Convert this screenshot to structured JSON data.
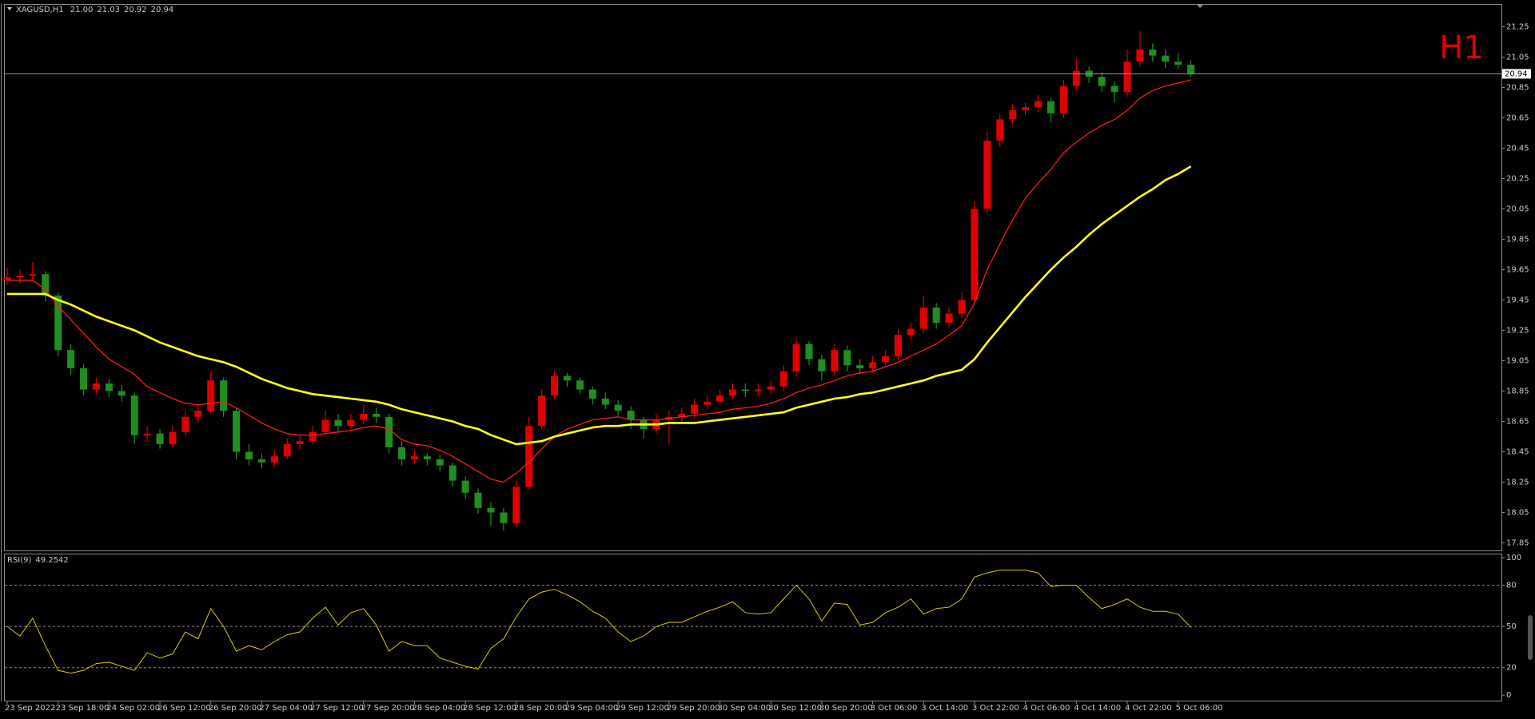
{
  "chart_data": {
    "type": "candlestick",
    "symbol": "XAGUSD,H1",
    "last_bar_labels": [
      "21.00",
      "21.03",
      "20.92",
      "20.94"
    ],
    "timeframe_label": "H1",
    "up_color": "#e00000",
    "down_color": "#1f8f1f",
    "current_price_line": true,
    "ylim": [
      17.8,
      21.4
    ],
    "yticks": [
      21.25,
      21.05,
      20.85,
      20.65,
      20.45,
      20.25,
      20.05,
      19.85,
      19.65,
      19.45,
      19.25,
      19.05,
      18.85,
      18.65,
      18.45,
      18.25,
      18.05,
      17.85
    ],
    "categories": [
      "23 Sep 2022",
      null,
      null,
      null,
      "23 Sep 18:00",
      null,
      null,
      null,
      "24 Sep 02:00",
      null,
      null,
      null,
      "26 Sep 12:00",
      null,
      null,
      null,
      "26 Sep 20:00",
      null,
      null,
      null,
      "27 Sep 04:00",
      null,
      null,
      null,
      "27 Sep 12:00",
      null,
      null,
      null,
      "27 Sep 20:00",
      null,
      null,
      null,
      "28 Sep 04:00",
      null,
      null,
      null,
      "28 Sep 12:00",
      null,
      null,
      null,
      "28 Sep 20:00",
      null,
      null,
      null,
      "29 Sep 04:00",
      null,
      null,
      null,
      "29 Sep 12:00",
      null,
      null,
      null,
      "29 Sep 20:00",
      null,
      null,
      null,
      "30 Sep 04:00",
      null,
      null,
      null,
      "30 Sep 12:00",
      null,
      null,
      null,
      "30 Sep 20:00",
      null,
      null,
      null,
      "3 Oct 06:00",
      null,
      null,
      null,
      "3 Oct 14:00",
      null,
      null,
      null,
      "3 Oct 22:00",
      null,
      null,
      null,
      "4 Oct 06:00",
      null,
      null,
      null,
      "4 Oct 14:00",
      null,
      null,
      null,
      "4 Oct 22:00",
      null,
      null,
      null,
      "5 Oct 06:00",
      null
    ],
    "candles": [
      [
        19.58,
        19.66,
        19.55,
        19.6
      ],
      [
        19.6,
        19.65,
        19.56,
        19.61
      ],
      [
        19.61,
        19.7,
        19.58,
        19.62
      ],
      [
        19.62,
        19.64,
        19.44,
        19.48
      ],
      [
        19.48,
        19.5,
        19.08,
        19.12
      ],
      [
        19.12,
        19.16,
        18.96,
        19.0
      ],
      [
        19.0,
        19.03,
        18.82,
        18.86
      ],
      [
        18.86,
        18.94,
        18.83,
        18.9
      ],
      [
        18.9,
        18.93,
        18.81,
        18.85
      ],
      [
        18.85,
        18.89,
        18.78,
        18.82
      ],
      [
        18.82,
        18.84,
        18.5,
        18.56
      ],
      [
        18.56,
        18.62,
        18.52,
        18.57
      ],
      [
        18.57,
        18.6,
        18.47,
        18.5
      ],
      [
        18.5,
        18.62,
        18.48,
        18.58
      ],
      [
        18.58,
        18.72,
        18.55,
        18.68
      ],
      [
        18.68,
        18.76,
        18.64,
        18.72
      ],
      [
        18.72,
        18.98,
        18.7,
        18.92
      ],
      [
        18.92,
        18.94,
        18.68,
        18.72
      ],
      [
        18.72,
        18.74,
        18.4,
        18.45
      ],
      [
        18.45,
        18.5,
        18.36,
        18.4
      ],
      [
        18.4,
        18.44,
        18.34,
        18.38
      ],
      [
        18.38,
        18.46,
        18.35,
        18.42
      ],
      [
        18.42,
        18.54,
        18.4,
        18.5
      ],
      [
        18.5,
        18.56,
        18.47,
        18.52
      ],
      [
        18.52,
        18.62,
        18.5,
        18.58
      ],
      [
        18.58,
        18.72,
        18.56,
        18.66
      ],
      [
        18.66,
        18.7,
        18.58,
        18.62
      ],
      [
        18.62,
        18.7,
        18.6,
        18.66
      ],
      [
        18.66,
        18.76,
        18.63,
        18.7
      ],
      [
        18.7,
        18.74,
        18.64,
        18.68
      ],
      [
        18.68,
        18.7,
        18.44,
        18.48
      ],
      [
        18.48,
        18.52,
        18.36,
        18.4
      ],
      [
        18.4,
        18.46,
        18.37,
        18.42
      ],
      [
        18.42,
        18.44,
        18.36,
        18.4
      ],
      [
        18.4,
        18.43,
        18.32,
        18.36
      ],
      [
        18.36,
        18.38,
        18.22,
        18.26
      ],
      [
        18.26,
        18.29,
        18.14,
        18.18
      ],
      [
        18.18,
        18.21,
        18.04,
        18.08
      ],
      [
        18.08,
        18.12,
        17.96,
        18.05
      ],
      [
        18.05,
        18.08,
        17.93,
        17.98
      ],
      [
        17.98,
        18.26,
        17.95,
        18.22
      ],
      [
        18.22,
        18.68,
        18.2,
        18.62
      ],
      [
        18.62,
        18.86,
        18.6,
        18.82
      ],
      [
        18.82,
        18.98,
        18.8,
        18.95
      ],
      [
        18.95,
        18.97,
        18.88,
        18.92
      ],
      [
        18.92,
        18.94,
        18.83,
        18.86
      ],
      [
        18.86,
        18.88,
        18.76,
        18.8
      ],
      [
        18.8,
        18.84,
        18.73,
        18.76
      ],
      [
        18.76,
        18.79,
        18.68,
        18.72
      ],
      [
        18.72,
        18.75,
        18.6,
        18.66
      ],
      [
        18.66,
        18.68,
        18.54,
        18.6
      ],
      [
        18.6,
        18.7,
        18.57,
        18.66
      ],
      [
        18.66,
        18.72,
        18.5,
        18.68
      ],
      [
        18.68,
        18.74,
        18.65,
        18.7
      ],
      [
        18.7,
        18.8,
        18.67,
        18.76
      ],
      [
        18.76,
        18.82,
        18.73,
        18.78
      ],
      [
        18.78,
        18.86,
        18.76,
        18.82
      ],
      [
        18.82,
        18.9,
        18.8,
        18.86
      ],
      [
        18.86,
        18.9,
        18.81,
        18.85
      ],
      [
        18.85,
        18.9,
        18.82,
        18.86
      ],
      [
        18.86,
        18.92,
        18.83,
        18.88
      ],
      [
        18.88,
        19.02,
        18.85,
        18.98
      ],
      [
        18.98,
        19.2,
        18.95,
        19.16
      ],
      [
        19.16,
        19.18,
        19.02,
        19.06
      ],
      [
        19.06,
        19.09,
        18.92,
        18.98
      ],
      [
        18.98,
        19.16,
        18.95,
        19.12
      ],
      [
        19.12,
        19.15,
        18.98,
        19.02
      ],
      [
        19.02,
        19.06,
        18.96,
        19.0
      ],
      [
        19.0,
        19.08,
        18.97,
        19.04
      ],
      [
        19.04,
        19.12,
        19.01,
        19.08
      ],
      [
        19.08,
        19.26,
        19.05,
        19.22
      ],
      [
        19.22,
        19.3,
        19.18,
        19.26
      ],
      [
        19.26,
        19.48,
        19.23,
        19.4
      ],
      [
        19.4,
        19.43,
        19.26,
        19.3
      ],
      [
        19.3,
        19.4,
        19.27,
        19.36
      ],
      [
        19.36,
        19.5,
        19.33,
        19.45
      ],
      [
        19.45,
        20.1,
        19.42,
        20.05
      ],
      [
        20.05,
        20.56,
        20.02,
        20.5
      ],
      [
        20.5,
        20.68,
        20.46,
        20.64
      ],
      [
        20.64,
        20.74,
        20.61,
        20.7
      ],
      [
        20.7,
        20.75,
        20.67,
        20.72
      ],
      [
        20.72,
        20.8,
        20.69,
        20.76
      ],
      [
        20.76,
        20.78,
        20.62,
        20.68
      ],
      [
        20.68,
        20.9,
        20.65,
        20.86
      ],
      [
        20.86,
        21.04,
        20.83,
        20.96
      ],
      [
        20.96,
        20.99,
        20.88,
        20.92
      ],
      [
        20.92,
        20.95,
        20.82,
        20.86
      ],
      [
        20.86,
        20.89,
        20.75,
        20.82
      ],
      [
        20.82,
        21.1,
        20.79,
        21.02
      ],
      [
        21.02,
        21.22,
        20.99,
        21.1
      ],
      [
        21.1,
        21.14,
        21.02,
        21.06
      ],
      [
        21.06,
        21.1,
        20.98,
        21.02
      ],
      [
        21.02,
        21.08,
        20.97,
        21.0
      ],
      [
        21.0,
        21.03,
        20.92,
        20.94
      ]
    ],
    "moving_averages": [
      {
        "color": "#ff1a1a",
        "width": 1.3,
        "values": [
          19.58,
          19.58,
          19.58,
          19.52,
          19.41,
          19.32,
          19.23,
          19.14,
          19.06,
          19.01,
          18.96,
          18.88,
          18.84,
          18.8,
          18.77,
          18.76,
          18.77,
          18.78,
          18.74,
          18.69,
          18.64,
          18.6,
          18.57,
          18.56,
          18.56,
          18.57,
          18.58,
          18.59,
          18.61,
          18.62,
          18.6,
          18.53,
          18.5,
          18.49,
          18.46,
          18.42,
          18.37,
          18.32,
          18.27,
          18.25,
          18.31,
          18.38,
          18.47,
          18.55,
          18.6,
          18.63,
          18.66,
          18.67,
          18.68,
          18.66,
          18.66,
          18.66,
          18.67,
          18.68,
          18.69,
          18.7,
          18.71,
          18.73,
          18.74,
          18.75,
          18.77,
          18.8,
          18.84,
          18.87,
          18.89,
          18.92,
          18.95,
          18.97,
          18.98,
          19.01,
          19.04,
          19.08,
          19.12,
          19.16,
          19.22,
          19.28,
          19.43,
          19.65,
          19.82,
          19.98,
          20.12,
          20.22,
          20.31,
          20.42,
          20.49,
          20.55,
          20.6,
          20.64,
          20.7,
          20.78,
          20.83,
          20.86,
          20.88,
          20.9
        ]
      },
      {
        "color": "#ffff1a",
        "width": 2.6,
        "values": [
          19.49,
          19.49,
          19.49,
          19.49,
          19.45,
          19.42,
          19.38,
          19.34,
          19.31,
          19.28,
          19.25,
          19.21,
          19.17,
          19.14,
          19.11,
          19.08,
          19.06,
          19.04,
          19.01,
          18.97,
          18.93,
          18.9,
          18.87,
          18.85,
          18.83,
          18.82,
          18.81,
          18.8,
          18.79,
          18.78,
          18.76,
          18.73,
          18.71,
          18.69,
          18.67,
          18.65,
          18.62,
          18.6,
          18.56,
          18.53,
          18.5,
          18.51,
          18.52,
          18.55,
          18.57,
          18.59,
          18.61,
          18.62,
          18.62,
          18.63,
          18.63,
          18.63,
          18.64,
          18.64,
          18.64,
          18.65,
          18.66,
          18.67,
          18.68,
          18.69,
          18.7,
          18.71,
          18.74,
          18.76,
          18.78,
          18.8,
          18.81,
          18.83,
          18.84,
          18.86,
          18.88,
          18.9,
          18.92,
          18.95,
          18.97,
          18.99,
          19.06,
          19.17,
          19.27,
          19.37,
          19.47,
          19.56,
          19.65,
          19.73,
          19.8,
          19.88,
          19.95,
          20.01,
          20.07,
          20.13,
          20.18,
          20.24,
          20.28,
          20.33
        ]
      }
    ],
    "rsi": {
      "name": "RSI(9)",
      "color": "#d8cc00",
      "ylim": [
        -4,
        103
      ],
      "yticks": [
        0,
        20,
        50,
        80,
        100
      ],
      "levels": [
        20,
        50,
        80
      ],
      "values": [
        50,
        43,
        56,
        36,
        18,
        16,
        18,
        23,
        24,
        21,
        18,
        31,
        27,
        30,
        46,
        41,
        63,
        50,
        32,
        36,
        33,
        39,
        44,
        46,
        56,
        64,
        51,
        60,
        63,
        51,
        32,
        39,
        36,
        36,
        27,
        24,
        21,
        19,
        34,
        41,
        57,
        70,
        75,
        77,
        73,
        68,
        61,
        56,
        46,
        39,
        43,
        50,
        53,
        53,
        57,
        61,
        64,
        68,
        60,
        59,
        60,
        70,
        80,
        70,
        54,
        67,
        66,
        51,
        53,
        60,
        64,
        70,
        59,
        63,
        64,
        70,
        86,
        89,
        91,
        91,
        91,
        89,
        79,
        80,
        80,
        71,
        63,
        66,
        70,
        64,
        61,
        61,
        59,
        49.2542
      ]
    }
  }
}
